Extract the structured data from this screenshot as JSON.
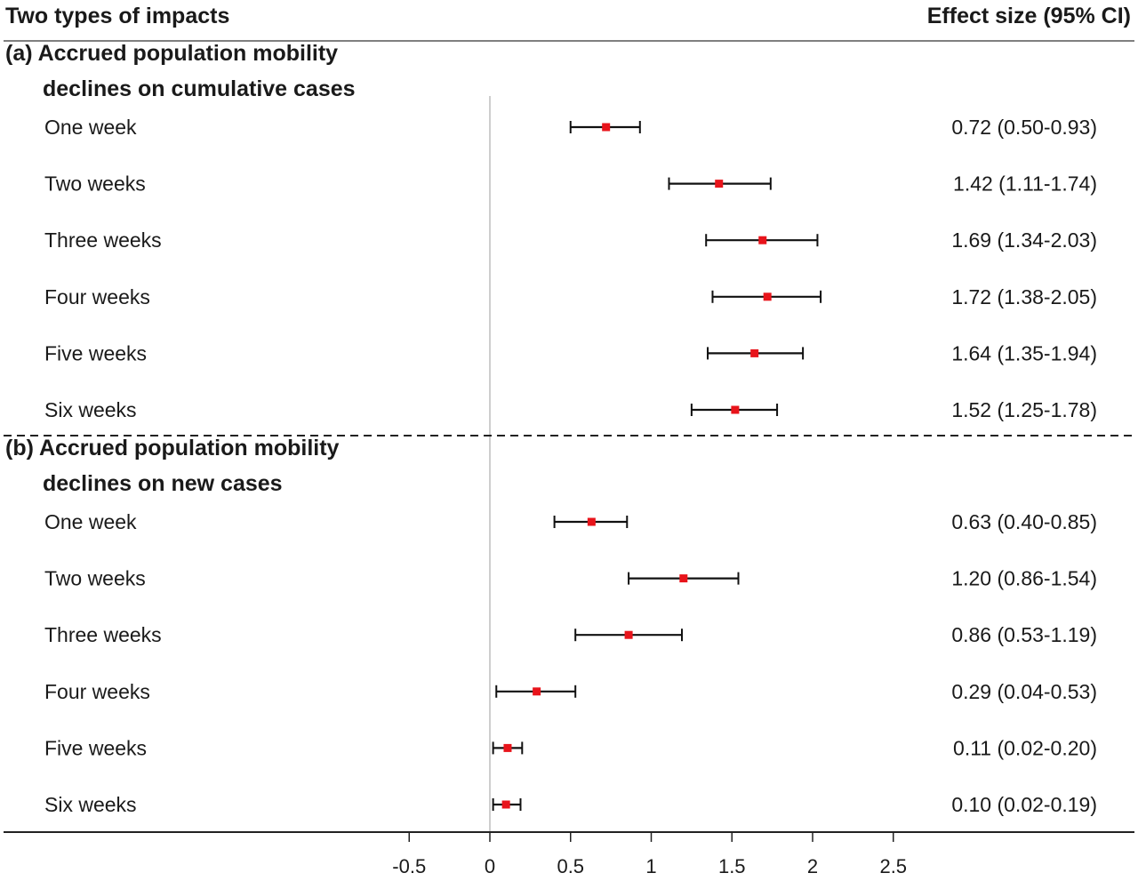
{
  "chart_data": {
    "type": "forest",
    "headers": {
      "left": "Two types of impacts",
      "right": "Effect size (95% CI)"
    },
    "xlim": [
      -0.5,
      2.5
    ],
    "xticks": [
      -0.5,
      0,
      0.5,
      1,
      1.5,
      2,
      2.5
    ],
    "xtick_labels": [
      "-0.5",
      "0",
      "0.5",
      "1",
      "1.5",
      "2",
      "2.5"
    ],
    "reference_line": 0,
    "marker_color": "#e8141b",
    "groups": [
      {
        "title_line1": "(a) Accrued population mobility",
        "title_line2": "declines on cumulative cases",
        "rows": [
          {
            "label": "One week",
            "est": 0.72,
            "lo": 0.5,
            "hi": 0.93,
            "text": "0.72 (0.50-0.93)"
          },
          {
            "label": "Two weeks",
            "est": 1.42,
            "lo": 1.11,
            "hi": 1.74,
            "text": "1.42 (1.11-1.74)"
          },
          {
            "label": "Three weeks",
            "est": 1.69,
            "lo": 1.34,
            "hi": 2.03,
            "text": "1.69 (1.34-2.03)"
          },
          {
            "label": "Four weeks",
            "est": 1.72,
            "lo": 1.38,
            "hi": 2.05,
            "text": "1.72 (1.38-2.05)"
          },
          {
            "label": "Five weeks",
            "est": 1.64,
            "lo": 1.35,
            "hi": 1.94,
            "text": "1.64 (1.35-1.94)"
          },
          {
            "label": "Six weeks",
            "est": 1.52,
            "lo": 1.25,
            "hi": 1.78,
            "text": "1.52 (1.25-1.78)"
          }
        ]
      },
      {
        "title_line1": "(b) Accrued population mobility",
        "title_line2": "declines on new cases",
        "rows": [
          {
            "label": "One week",
            "est": 0.63,
            "lo": 0.4,
            "hi": 0.85,
            "text": "0.63 (0.40-0.85)"
          },
          {
            "label": "Two weeks",
            "est": 1.2,
            "lo": 0.86,
            "hi": 1.54,
            "text": "1.20 (0.86-1.54)"
          },
          {
            "label": "Three weeks",
            "est": 0.86,
            "lo": 0.53,
            "hi": 1.19,
            "text": "0.86 (0.53-1.19)"
          },
          {
            "label": "Four weeks",
            "est": 0.29,
            "lo": 0.04,
            "hi": 0.53,
            "text": "0.29 (0.04-0.53)"
          },
          {
            "label": "Five weeks",
            "est": 0.11,
            "lo": 0.02,
            "hi": 0.2,
            "text": "0.11 (0.02-0.20)"
          },
          {
            "label": "Six weeks",
            "est": 0.1,
            "lo": 0.02,
            "hi": 0.19,
            "text": "0.10 (0.02-0.19)"
          }
        ]
      }
    ]
  }
}
